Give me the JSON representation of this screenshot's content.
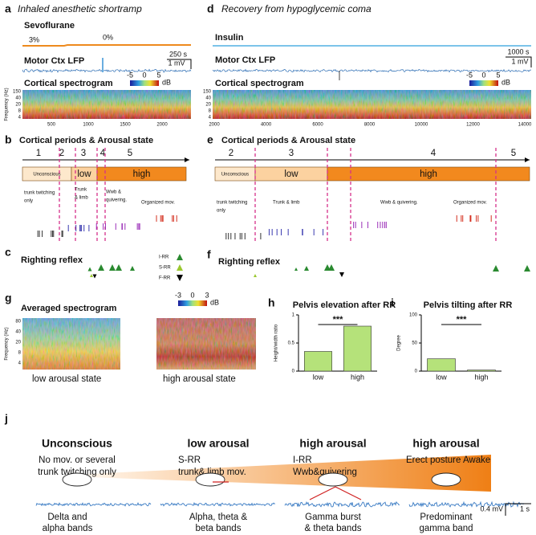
{
  "panel_a": {
    "label": "a",
    "title": "Inhaled anesthetic shortramp",
    "drug": "Sevoflurane",
    "dose_start": "3%",
    "dose_end": "0%",
    "lfp": "Motor Ctx LFP",
    "time_scale": "250 s",
    "volt_scale": "1 mV",
    "spectrogram": "Cortical spectrogram",
    "colorbar": [
      "-5",
      "0",
      "5"
    ],
    "colorbar_unit": "dB",
    "freq_label": "Frequency (Hz)",
    "freq_ticks": [
      "150",
      "40",
      "20",
      "8",
      "4"
    ],
    "time_ticks": [
      "500",
      "1000",
      "1500",
      "2000"
    ]
  },
  "panel_d": {
    "label": "d",
    "title": "Recovery from hypoglycemic coma",
    "drug": "Insulin",
    "lfp": "Motor Ctx LFP",
    "time_scale": "1000 s",
    "volt_scale": "1 mV",
    "spectrogram": "Cortical spectrogram",
    "colorbar": [
      "-5",
      "0",
      "5"
    ],
    "colorbar_unit": "dB",
    "freq_ticks": [
      "150",
      "40",
      "20",
      "8",
      "4"
    ],
    "time_ticks": [
      "2000",
      "4000",
      "6000",
      "8000",
      "10000",
      "12000",
      "14000"
    ]
  },
  "panel_b": {
    "label": "b",
    "title": "Cortical periods & Arousal state",
    "periods": [
      "1",
      "2",
      "3",
      "4",
      "5"
    ],
    "states": [
      "Unconscious",
      "low",
      "high"
    ],
    "behaviors": [
      "trunk twitching",
      "only",
      "Trunk",
      "& limb",
      "Wwb &",
      "quivering.",
      "Organized mov."
    ]
  },
  "panel_e": {
    "label": "e",
    "title": "Cortical periods & Arousal state",
    "periods": [
      "2",
      "3",
      "4",
      "5"
    ],
    "states": [
      "Unconscious",
      "low",
      "high"
    ],
    "behaviors": [
      "trunk twitching",
      "only",
      "Trunk & limb",
      "Wwb & quivering.",
      "Organized mov."
    ]
  },
  "panel_c": {
    "label": "c",
    "title": "Righting reflex",
    "legend": [
      "I-RR",
      "S-RR",
      "F-RR"
    ]
  },
  "panel_f": {
    "label": "f",
    "title": "Righting reflex"
  },
  "panel_g": {
    "label": "g",
    "title": "Averaged spectrogram",
    "freq_label": "Frequency (Hz)",
    "freq_ticks": [
      "80",
      "40",
      "20",
      "8",
      "4"
    ],
    "colorbar": [
      "-3",
      "0",
      "3"
    ],
    "colorbar_unit": "dB",
    "captions": [
      "low arousal state",
      "high arousal state"
    ]
  },
  "chart_data": [
    {
      "type": "bar",
      "panel_label": "h",
      "title": "Pelvis elevation after RR",
      "ylabel": "Height/width ratio",
      "categories": [
        "low",
        "high"
      ],
      "values": [
        0.35,
        0.8
      ],
      "color": "#b5e27a",
      "ylim": [
        0,
        1
      ],
      "yticks": [
        0,
        0.5,
        1
      ],
      "annotation": "***"
    },
    {
      "type": "bar",
      "panel_label": "i",
      "title": "Pelvis tilting after RR",
      "ylabel": "Degree",
      "categories": [
        "low",
        "high"
      ],
      "values": [
        22,
        2
      ],
      "color": "#b5e27a",
      "ylim": [
        0,
        100
      ],
      "yticks": [
        0,
        50,
        100
      ],
      "annotation": "***"
    }
  ],
  "panel_j": {
    "label": "j",
    "stages": [
      {
        "title": "Unconscious",
        "description": [
          "No mov. or several",
          "trunk twitching only"
        ],
        "bands": [
          "Delta and",
          "alpha bands"
        ]
      },
      {
        "title": "low arousal",
        "description": [
          "S-RR",
          "trunk& limb mov."
        ],
        "bands": [
          "Alpha, theta &",
          "beta bands"
        ]
      },
      {
        "title": "high arousal",
        "description": [
          "I-RR",
          "Wwb&quivering"
        ],
        "bands": [
          "Gamma burst",
          "& theta bands"
        ]
      },
      {
        "title": "high arousal",
        "description": [
          "Erect posture Awake"
        ],
        "bands": [
          "Predominant",
          "gamma band"
        ]
      }
    ],
    "volt_scale": "0.4 mV",
    "time_scale": "1 s"
  }
}
